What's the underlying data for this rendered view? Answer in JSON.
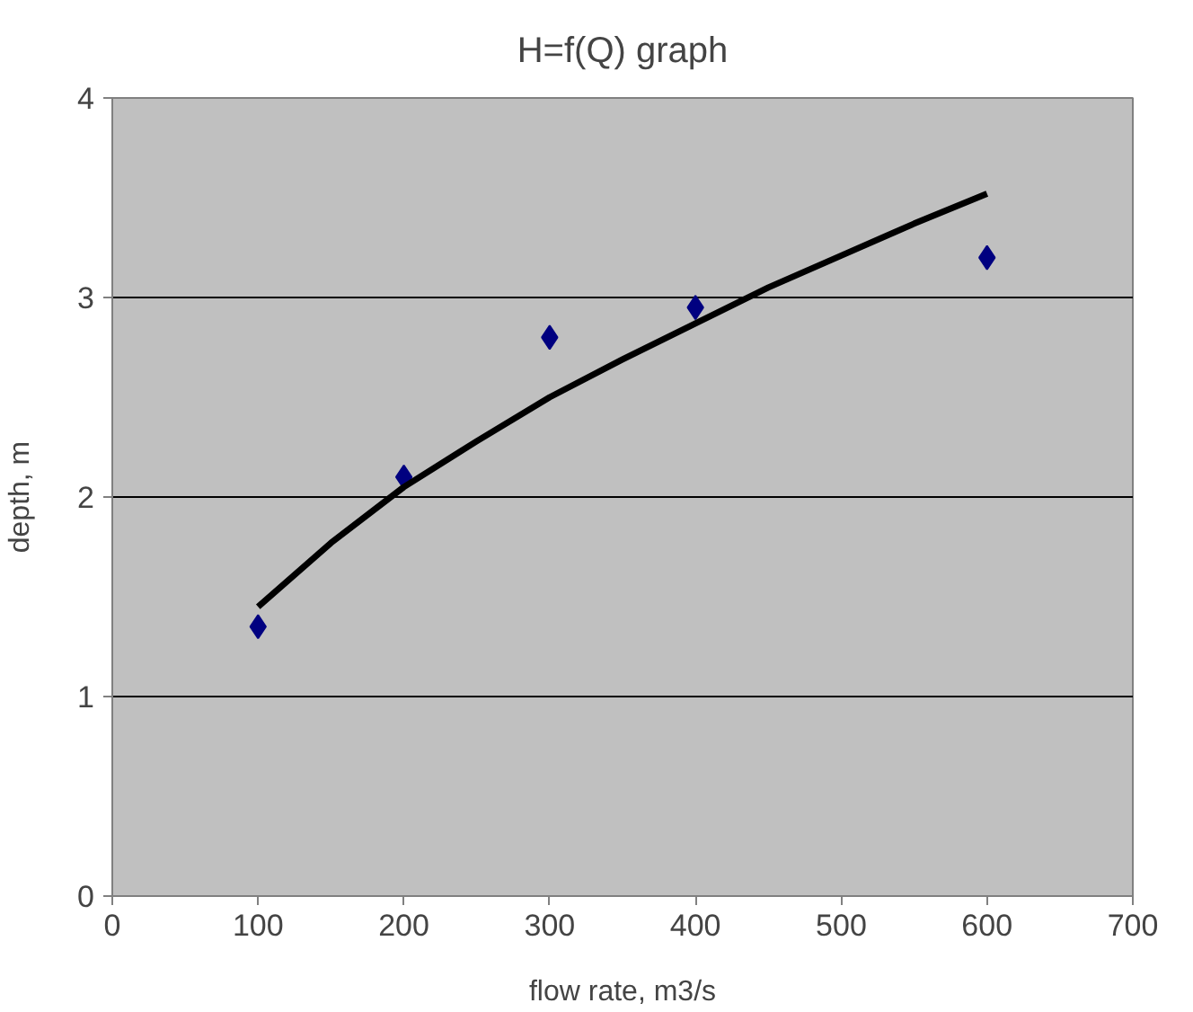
{
  "chart_data": {
    "type": "scatter",
    "title": "H=f(Q) graph",
    "xlabel": "flow rate, m3/s",
    "ylabel": "depth, m",
    "xlim": [
      0,
      700
    ],
    "ylim": [
      0,
      4
    ],
    "xticks": [
      0,
      100,
      200,
      300,
      400,
      500,
      600,
      700
    ],
    "yticks": [
      0,
      1,
      2,
      3,
      4
    ],
    "grid": "y",
    "marker": "diamond",
    "series": [
      {
        "color": "#000080",
        "x": [
          100,
          200,
          300,
          400,
          600
        ],
        "values": [
          1.35,
          2.1,
          2.8,
          2.95,
          3.2
        ]
      },
      {
        "type": "line",
        "color": "#000000",
        "marker": "none",
        "x": [
          100,
          150,
          200,
          250,
          300,
          350,
          400,
          450,
          500,
          550,
          600
        ],
        "values": [
          1.45,
          1.77,
          2.05,
          2.28,
          2.5,
          2.69,
          2.87,
          3.05,
          3.21,
          3.37,
          3.52
        ]
      }
    ]
  }
}
